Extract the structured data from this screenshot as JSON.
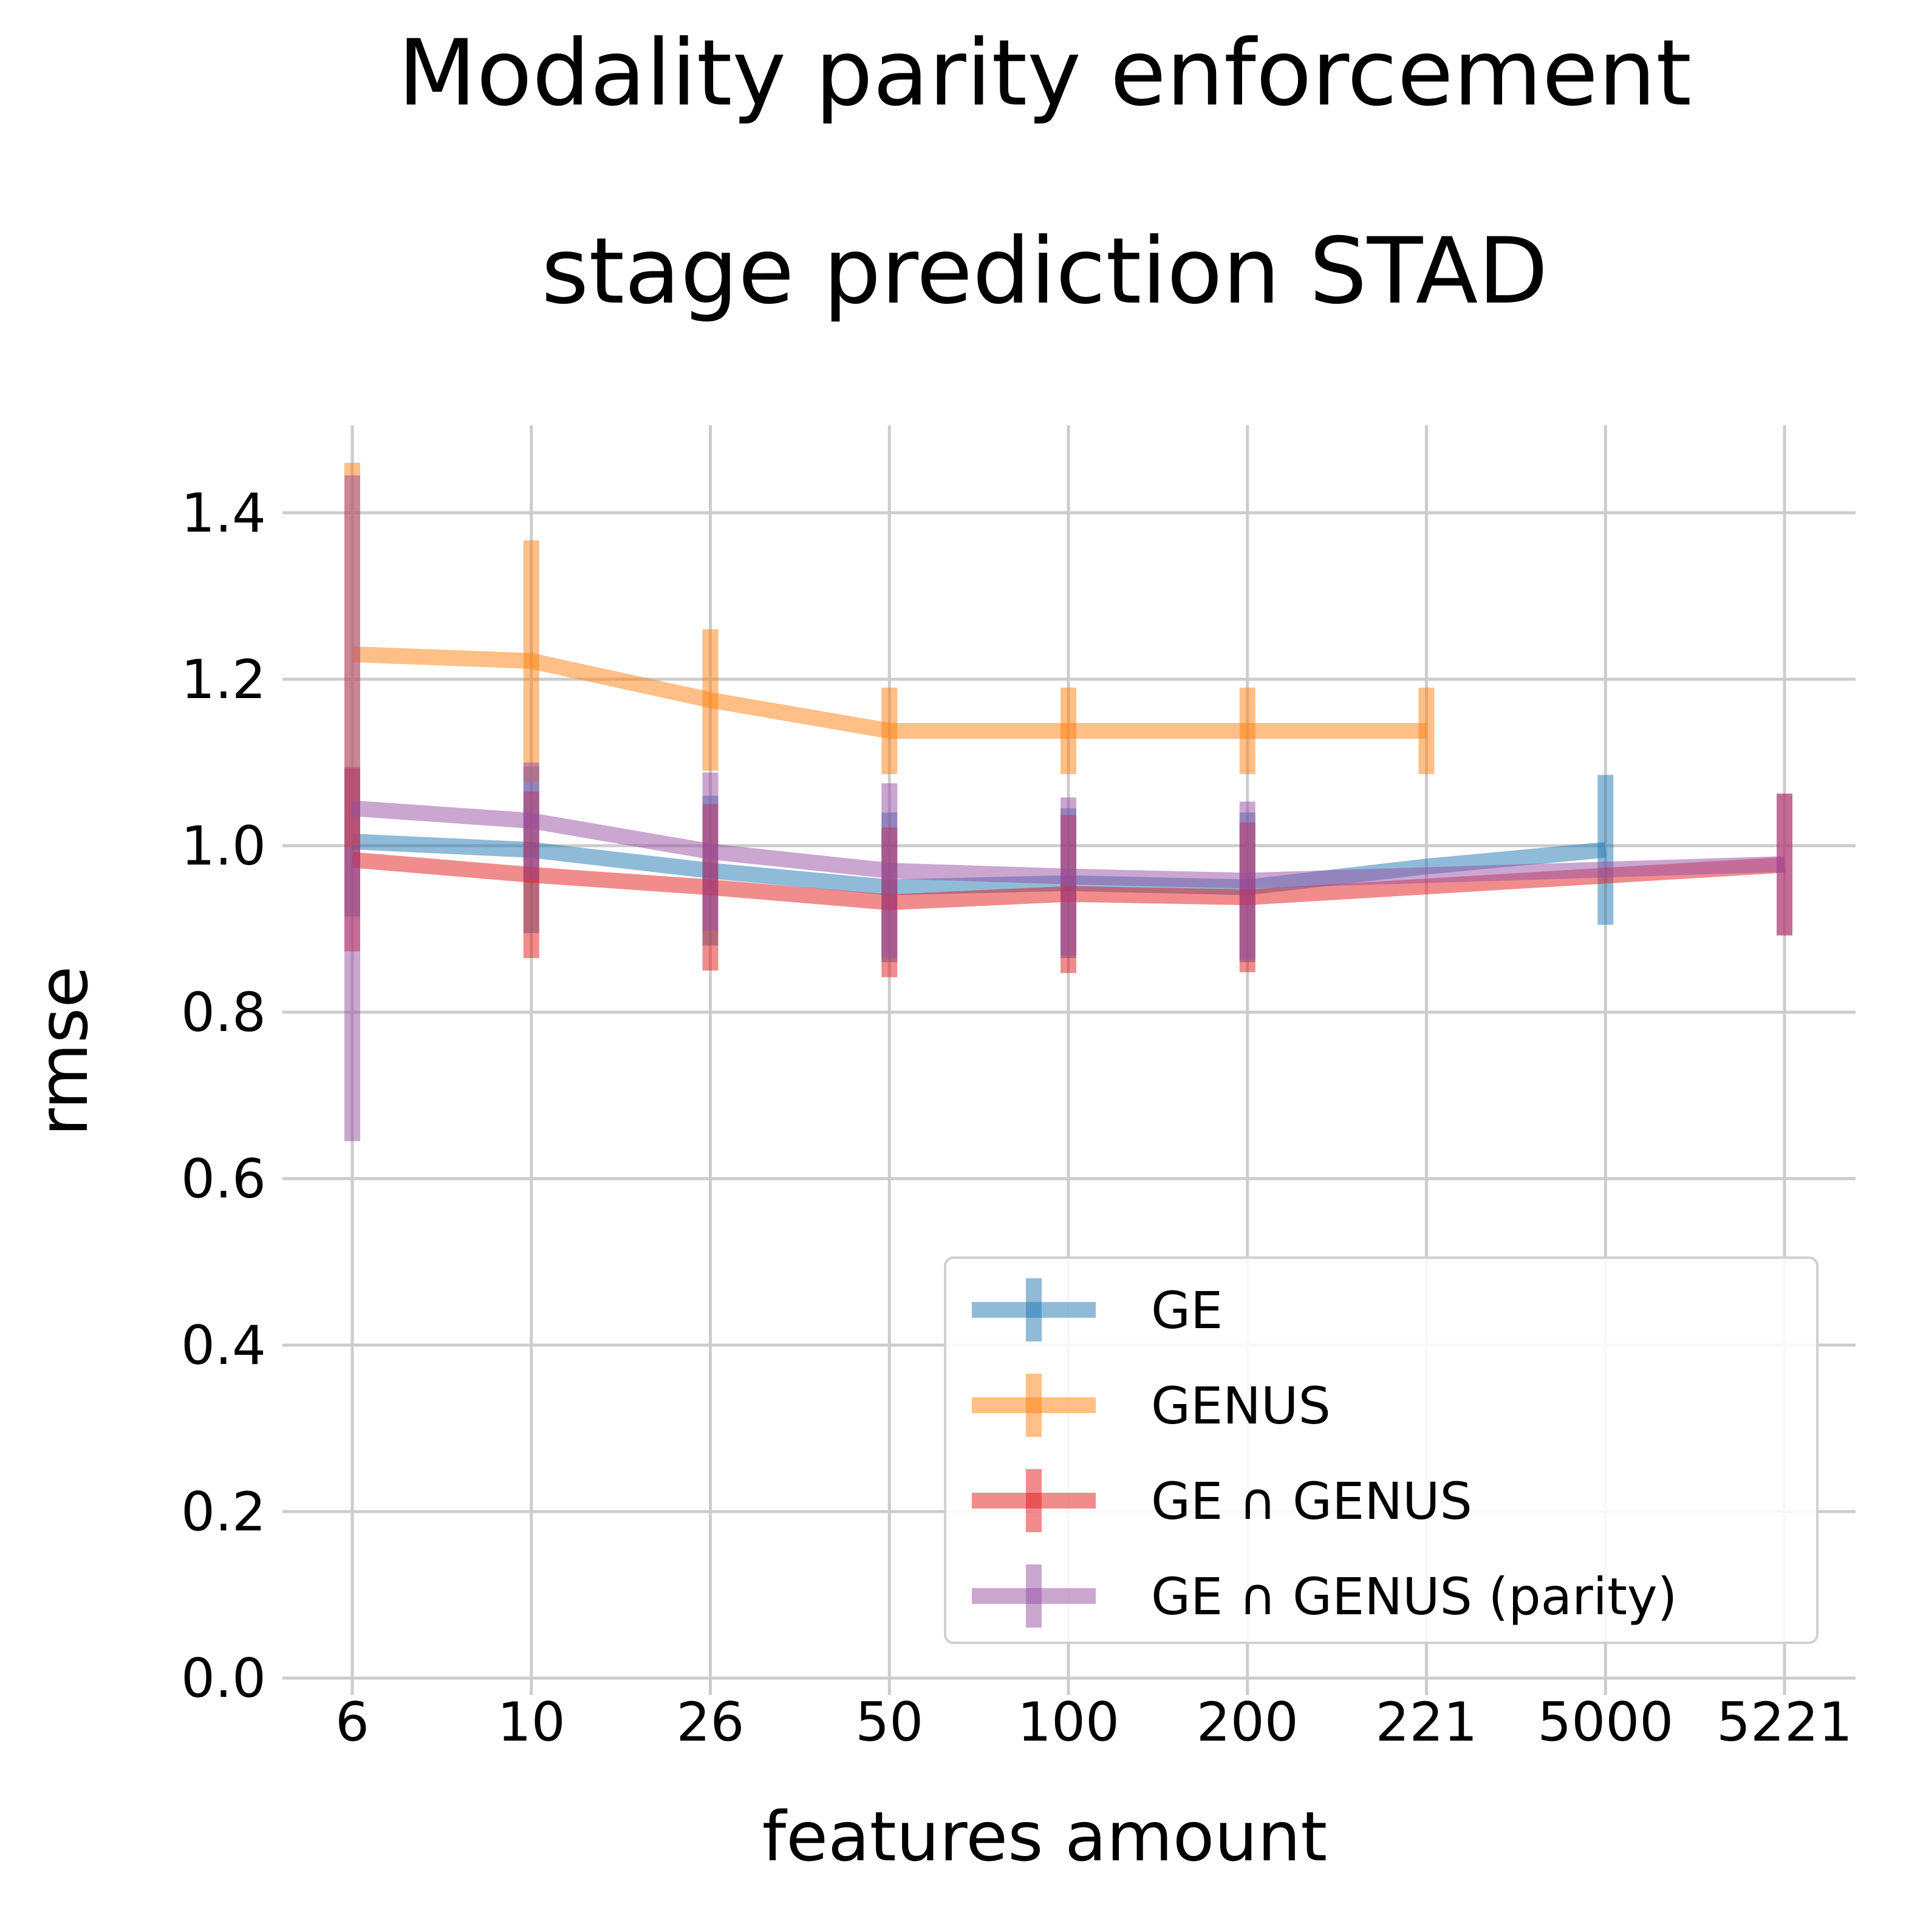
{
  "chart_data": {
    "type": "line",
    "title": "Modality parity enforcement",
    "subtitle": "stage prediction STAD",
    "xlabel": "features amount",
    "ylabel": "rmse",
    "x_scale": "categorical",
    "categories": [
      "6",
      "10",
      "26",
      "50",
      "100",
      "200",
      "221",
      "5000",
      "5221"
    ],
    "ylim": [
      0.0,
      1.5
    ],
    "yticks": [
      "0.0",
      "0.2",
      "0.4",
      "0.6",
      "0.8",
      "1.0",
      "1.2",
      "1.4"
    ],
    "ytick_values": [
      0.0,
      0.2,
      0.4,
      0.6,
      0.8,
      1.0,
      1.2,
      1.4
    ],
    "grid": true,
    "legend_position": "bottom-right",
    "error_bars": true,
    "series": [
      {
        "name": "GE",
        "color": "#1f77b4",
        "values": [
          1.005,
          0.995,
          0.97,
          0.95,
          0.955,
          0.95,
          0.975,
          0.995,
          null
        ],
        "errors": [
          0.09,
          0.1,
          0.09,
          0.09,
          0.09,
          0.09,
          null,
          0.09,
          null
        ]
      },
      {
        "name": "GENUS",
        "color": "#ff7f0e",
        "values": [
          1.23,
          1.222,
          1.175,
          1.138,
          1.138,
          1.138,
          1.138,
          null,
          null
        ],
        "errors": [
          0.23,
          0.145,
          0.085,
          0.052,
          0.052,
          0.052,
          0.052,
          null,
          null
        ]
      },
      {
        "name": "GE ∩ GENUS",
        "color": "#e41a1c",
        "values": [
          0.983,
          0.965,
          0.95,
          0.932,
          0.942,
          0.938,
          null,
          null,
          0.977
        ],
        "errors": [
          0.11,
          0.1,
          0.1,
          0.09,
          0.095,
          0.09,
          null,
          null,
          0.085
        ]
      },
      {
        "name": "GE ∩ GENUS (parity)",
        "color": "#984ea3",
        "values": [
          1.045,
          1.03,
          0.993,
          0.97,
          0.963,
          0.958,
          null,
          null,
          0.978
        ],
        "errors": [
          0.4,
          0.07,
          0.095,
          0.105,
          0.095,
          0.095,
          null,
          null,
          0.085
        ]
      }
    ]
  }
}
